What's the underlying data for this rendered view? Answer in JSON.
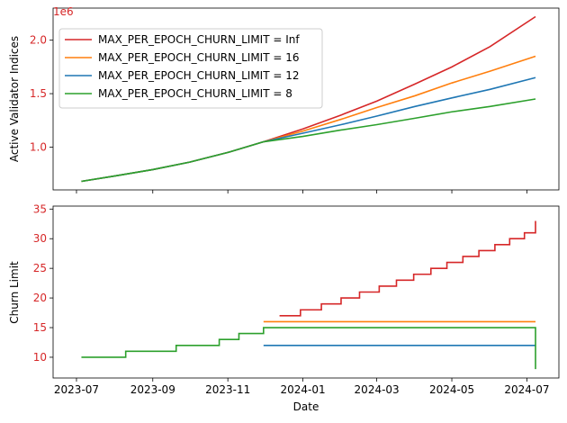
{
  "chart_data": [
    {
      "type": "line",
      "title": "",
      "ylabel": "Active Validator Indices",
      "y_offset_text": "1e6",
      "xlim": [
        "2023-06-12",
        "2024-07-27"
      ],
      "ylim": [
        0.6,
        2.3
      ],
      "y_ticks": [
        "1.0",
        "1.5",
        "2.0"
      ],
      "legend_position": "upper left",
      "series": [
        {
          "name": "MAX_PER_EPOCH_CHURN_LIMIT = Inf",
          "color": "#d62728",
          "x": [
            "2023-07-05",
            "2023-08-01",
            "2023-09-01",
            "2023-10-01",
            "2023-11-01",
            "2023-11-30",
            "2024-01-01",
            "2024-02-01",
            "2024-03-01",
            "2024-04-01",
            "2024-05-01",
            "2024-06-01",
            "2024-07-08"
          ],
          "values": [
            0.68,
            0.73,
            0.79,
            0.86,
            0.95,
            1.05,
            1.17,
            1.3,
            1.43,
            1.59,
            1.75,
            1.94,
            2.22
          ]
        },
        {
          "name": "MAX_PER_EPOCH_CHURN_LIMIT = 16",
          "color": "#ff7f0e",
          "x": [
            "2023-07-05",
            "2023-08-01",
            "2023-09-01",
            "2023-10-01",
            "2023-11-01",
            "2023-11-30",
            "2024-01-01",
            "2024-02-01",
            "2024-03-01",
            "2024-04-01",
            "2024-05-01",
            "2024-06-01",
            "2024-07-08"
          ],
          "values": [
            0.68,
            0.73,
            0.79,
            0.86,
            0.95,
            1.05,
            1.15,
            1.26,
            1.37,
            1.48,
            1.6,
            1.71,
            1.85
          ]
        },
        {
          "name": "MAX_PER_EPOCH_CHURN_LIMIT = 12",
          "color": "#1f77b4",
          "x": [
            "2023-07-05",
            "2023-08-01",
            "2023-09-01",
            "2023-10-01",
            "2023-11-01",
            "2023-11-30",
            "2024-01-01",
            "2024-02-01",
            "2024-03-01",
            "2024-04-01",
            "2024-05-01",
            "2024-06-01",
            "2024-07-08"
          ],
          "values": [
            0.68,
            0.73,
            0.79,
            0.86,
            0.95,
            1.05,
            1.13,
            1.21,
            1.29,
            1.38,
            1.46,
            1.54,
            1.65
          ]
        },
        {
          "name": "MAX_PER_EPOCH_CHURN_LIMIT = 8",
          "color": "#2ca02c",
          "x": [
            "2023-07-05",
            "2023-08-01",
            "2023-09-01",
            "2023-10-01",
            "2023-11-01",
            "2023-11-30",
            "2024-01-01",
            "2024-02-01",
            "2024-03-01",
            "2024-04-01",
            "2024-05-01",
            "2024-06-01",
            "2024-07-08"
          ],
          "values": [
            0.68,
            0.73,
            0.79,
            0.86,
            0.95,
            1.05,
            1.1,
            1.16,
            1.21,
            1.27,
            1.33,
            1.38,
            1.45
          ]
        }
      ]
    },
    {
      "type": "line",
      "title": "",
      "xlabel": "Date",
      "ylabel": "Churn Limit",
      "xlim": [
        "2023-06-12",
        "2024-07-27"
      ],
      "ylim": [
        6.5,
        35.5
      ],
      "x_ticks": [
        "2023-07",
        "2023-09",
        "2023-11",
        "2024-01",
        "2024-03",
        "2024-05",
        "2024-07"
      ],
      "y_ticks": [
        "10",
        "15",
        "20",
        "25",
        "30",
        "35"
      ],
      "step": true,
      "series": [
        {
          "name": "MAX_PER_EPOCH_CHURN_LIMIT = Inf",
          "color": "#d62728",
          "x": [
            "2023-12-13",
            "2023-12-30",
            "2024-01-16",
            "2024-02-01",
            "2024-02-16",
            "2024-03-03",
            "2024-03-17",
            "2024-03-31",
            "2024-04-14",
            "2024-04-27",
            "2024-05-10",
            "2024-05-23",
            "2024-06-05",
            "2024-06-17",
            "2024-06-29",
            "2024-07-08"
          ],
          "values": [
            17,
            18,
            19,
            20,
            21,
            22,
            23,
            24,
            25,
            26,
            27,
            28,
            29,
            30,
            31,
            33
          ]
        },
        {
          "name": "MAX_PER_EPOCH_CHURN_LIMIT = 16",
          "color": "#ff7f0e",
          "x": [
            "2023-11-30",
            "2024-07-08"
          ],
          "values": [
            16,
            16
          ]
        },
        {
          "name": "MAX_PER_EPOCH_CHURN_LIMIT = 12",
          "color": "#1f77b4",
          "x": [
            "2023-11-30",
            "2024-07-08"
          ],
          "values": [
            12,
            12
          ]
        },
        {
          "name": "MAX_PER_EPOCH_CHURN_LIMIT = 8",
          "color": "#2ca02c",
          "x": [
            "2023-07-05",
            "2023-08-10",
            "2023-09-20",
            "2023-10-25",
            "2023-11-10",
            "2023-11-30",
            "2024-07-08"
          ],
          "values": [
            10,
            11,
            12,
            13,
            14,
            15,
            8
          ]
        }
      ]
    }
  ]
}
